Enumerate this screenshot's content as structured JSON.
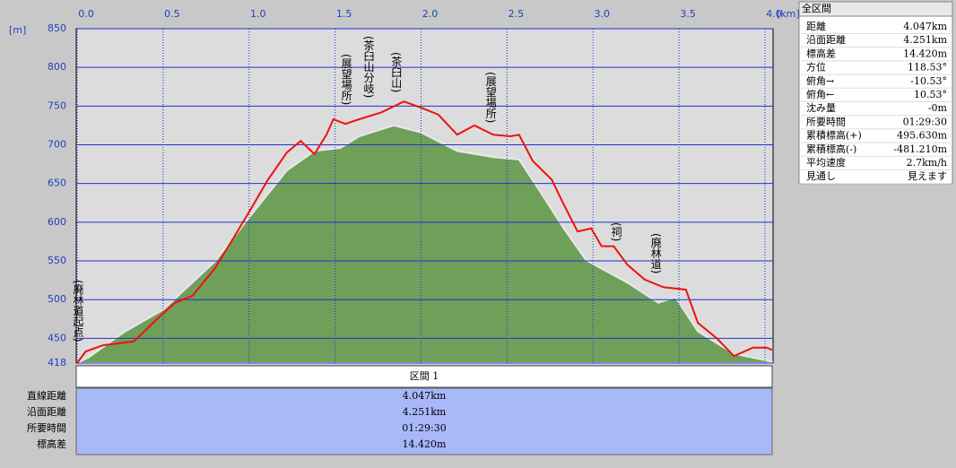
{
  "chart_data": {
    "type": "line",
    "x_unit": "[km]",
    "y_unit": "[m]",
    "xlim": [
      0,
      4.047
    ],
    "ylim": [
      418,
      850
    ],
    "xticks": [
      {
        "value": 0,
        "label": "0.0"
      },
      0.5,
      {
        "value": 1,
        "label": "1.0"
      },
      1.5,
      {
        "value": 2,
        "label": "2.0"
      },
      2.5,
      {
        "value": 3,
        "label": "3.0"
      },
      3.5,
      {
        "value": 4,
        "label": "4.0"
      }
    ],
    "yticks": [
      418,
      450,
      500,
      550,
      600,
      650,
      700,
      750,
      800,
      850
    ],
    "grid": true,
    "series": [
      {
        "name": "terrain",
        "kind": "area",
        "color": "#6fa05a",
        "x": [
          0,
          0.07,
          0.28,
          0.5,
          0.8,
          1.01,
          1.22,
          1.38,
          1.53,
          1.64,
          1.84,
          2.0,
          2.21,
          2.42,
          2.57,
          2.68,
          2.83,
          2.96,
          3.2,
          3.38,
          3.48,
          3.61,
          3.82,
          4.04
        ],
        "values": [
          418,
          426,
          459,
          487,
          549,
          609,
          667,
          692,
          696,
          711,
          725,
          716,
          692,
          684,
          681,
          644,
          592,
          551,
          522,
          496,
          503,
          459,
          430,
          420
        ]
      },
      {
        "name": "route",
        "kind": "line",
        "color": "#ee1111",
        "x": [
          0,
          0.05,
          0.15,
          0.33,
          0.39,
          0.47,
          0.57,
          0.67,
          0.8,
          0.91,
          1.01,
          1.11,
          1.22,
          1.3,
          1.38,
          1.45,
          1.49,
          1.56,
          1.64,
          1.77,
          1.9,
          2.0,
          2.1,
          2.21,
          2.31,
          2.42,
          2.52,
          2.57,
          2.65,
          2.76,
          2.83,
          2.91,
          2.99,
          3.05,
          3.12,
          3.2,
          3.3,
          3.41,
          3.54,
          3.61,
          3.72,
          3.82,
          3.93,
          4.01,
          4.04
        ],
        "values": [
          418,
          433,
          441,
          446,
          459,
          476,
          496,
          505,
          540,
          580,
          617,
          655,
          690,
          705,
          688,
          713,
          733,
          727,
          733,
          742,
          756,
          748,
          739,
          713,
          725,
          713,
          711,
          713,
          679,
          655,
          623,
          588,
          592,
          569,
          569,
          545,
          526,
          516,
          513,
          470,
          450,
          427,
          438,
          438,
          435
        ]
      }
    ],
    "annotations": [
      {
        "text": "(廃林道起点)",
        "x": 0
      },
      {
        "text": "(展望場所)",
        "x": 1.56
      },
      {
        "text": "(茶臼山分岐)",
        "x": 1.69
      },
      {
        "text": "(茶臼山)",
        "x": 1.85
      },
      {
        "text": "(展望場所)",
        "x": 2.4
      },
      {
        "text": "(祠)",
        "x": 3.13
      },
      {
        "text": "(廃林道)",
        "x": 3.36
      }
    ]
  },
  "summary_panel": {
    "title": "全区間",
    "rows": [
      [
        "距離",
        "4.047km"
      ],
      [
        "沿面距離",
        "4.251km"
      ],
      [
        "標高差",
        "14.420m"
      ],
      [
        "方位",
        "118.53°"
      ],
      [
        "俯角→",
        "-10.53°"
      ],
      [
        "俯角←",
        "10.53°"
      ],
      [
        "沈み量",
        "-0m"
      ],
      [
        "所要時間",
        "01:29:30"
      ],
      [
        "累積標高(+)",
        "495.630m"
      ],
      [
        "累積標高(-)",
        "-481.210m"
      ],
      [
        "平均速度",
        "2.7km/h"
      ],
      [
        "見通し",
        "見えます"
      ]
    ]
  },
  "section_table": {
    "header": "区間 1",
    "rows": [
      [
        "直線距離",
        "4.047km"
      ],
      [
        "沿面距離",
        "4.251km"
      ],
      [
        "所要時間",
        "01:29:30"
      ],
      [
        "標高差",
        "14.420m"
      ]
    ]
  }
}
